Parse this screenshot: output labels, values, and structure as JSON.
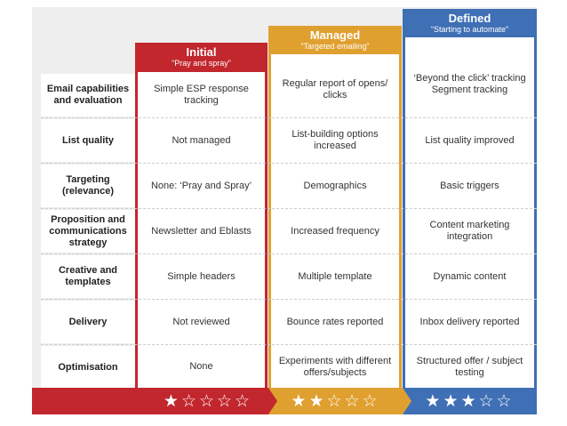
{
  "rows": [
    {
      "label": "Email capabilities and evaluation"
    },
    {
      "label": "List quality"
    },
    {
      "label": "Targeting (relevance)"
    },
    {
      "label": "Proposition and communications strategy"
    },
    {
      "label": "Creative and templates"
    },
    {
      "label": "Delivery"
    },
    {
      "label": "Optimisation"
    }
  ],
  "columns": [
    {
      "title": "Initial",
      "subtitle": "“Pray and spray”",
      "color": "#c1272d",
      "rating": 1,
      "stars": "★☆☆☆☆",
      "cells": [
        "Simple ESP response tracking",
        "Not managed",
        "None: ‘Pray and Spray’",
        "Newsletter and Eblasts",
        "Simple headers",
        "Not reviewed",
        "None"
      ]
    },
    {
      "title": "Managed",
      "subtitle": "“Targeted emailing”",
      "color": "#e0a030",
      "rating": 2,
      "stars": "★★☆☆☆",
      "cells": [
        "Regular report of opens/ clicks",
        "List-building options increased",
        "Demographics",
        "Increased frequency",
        "Multiple template",
        "Bounce rates reported",
        "Experiments with different offers/subjects"
      ]
    },
    {
      "title": "Defined",
      "subtitle": "“Starting to automate”",
      "color": "#3f6fb5",
      "rating": 3,
      "stars": "★★★☆☆",
      "cells": [
        "‘Beyond the click’ tracking Segment tracking",
        "List quality improved",
        "Basic triggers",
        "Content marketing integration",
        "Dynamic content",
        "Inbox delivery reported",
        "Structured offer / subject testing"
      ]
    }
  ]
}
